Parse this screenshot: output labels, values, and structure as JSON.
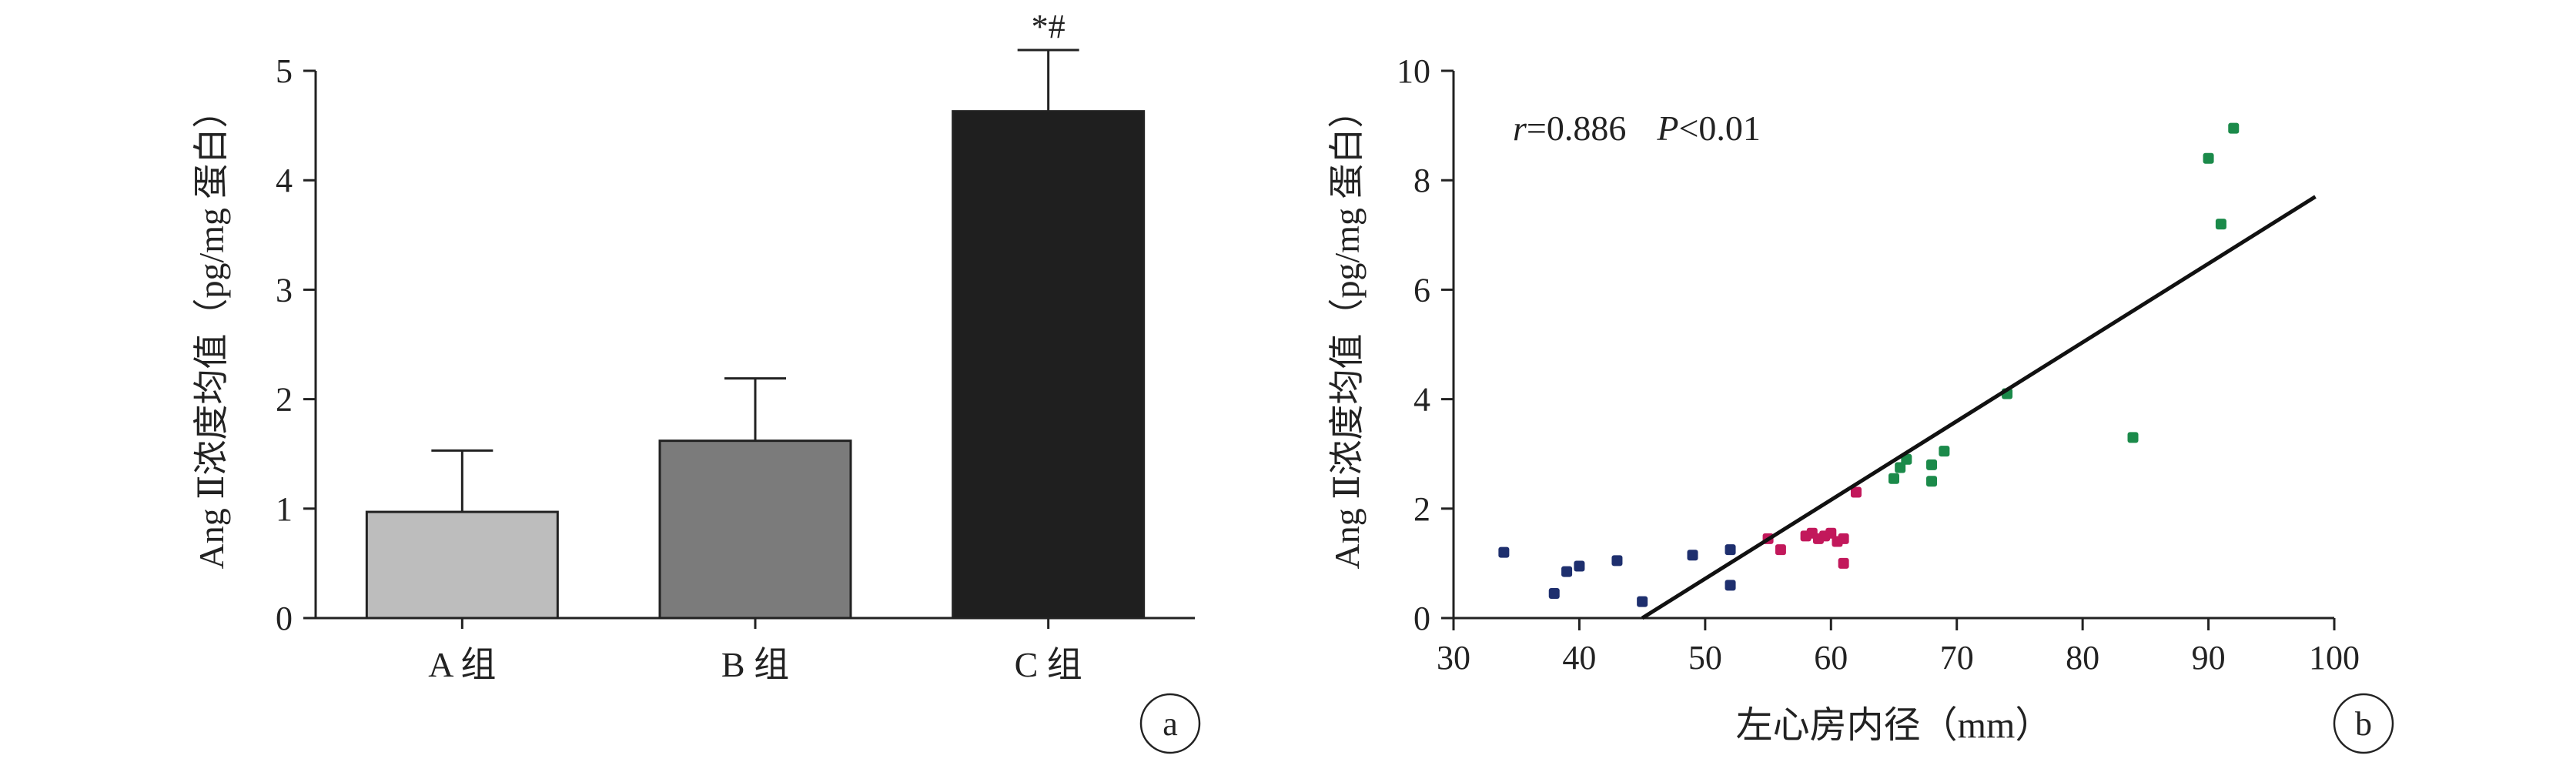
{
  "chart_data": [
    {
      "type": "bar",
      "panel_label": "a",
      "ylabel": "Ang Ⅱ浓度均值（pg/mg 蛋白）",
      "ylim": [
        0,
        5
      ],
      "yticks": [
        "0",
        "1",
        "2",
        "3",
        "4",
        "5"
      ],
      "categories": [
        "A 组",
        "B 组",
        "C 组"
      ],
      "values": [
        0.97,
        1.62,
        4.63
      ],
      "errors": [
        0.56,
        0.57,
        0.56
      ],
      "annotations": [
        "",
        "",
        "*#"
      ],
      "colors": [
        "#bdbdbd",
        "#7b7b7b",
        "#1f1f1f"
      ]
    },
    {
      "type": "scatter",
      "panel_label": "b",
      "xlabel": "左心房内径（mm）",
      "ylabel": "Ang Ⅱ浓度均值（pg/mg 蛋白）",
      "xlim": [
        30,
        100
      ],
      "ylim": [
        0,
        10
      ],
      "xticks": [
        "30",
        "40",
        "50",
        "60",
        "70",
        "80",
        "90",
        "100"
      ],
      "yticks": [
        "0",
        "2",
        "4",
        "6",
        "8",
        "10"
      ],
      "stat_r": "r",
      "stat_r_value": "=0.886",
      "stat_p": "P",
      "stat_p_value": "<0.01",
      "fit_line": {
        "x": [
          45,
          98.5
        ],
        "y": [
          0,
          7.7
        ]
      },
      "groups": [
        {
          "color": "#1e2f6e",
          "points": [
            [
              34,
              1.2
            ],
            [
              38,
              0.45
            ],
            [
              39,
              0.85
            ],
            [
              40,
              0.95
            ],
            [
              43,
              1.05
            ],
            [
              45,
              0.3
            ],
            [
              49,
              1.15
            ],
            [
              52,
              1.25
            ],
            [
              52,
              0.6
            ]
          ]
        },
        {
          "color": "#c2185b",
          "points": [
            [
              55,
              1.45
            ],
            [
              56,
              1.25
            ],
            [
              58,
              1.5
            ],
            [
              58.5,
              1.55
            ],
            [
              59,
              1.45
            ],
            [
              59.5,
              1.5
            ],
            [
              60,
              1.55
            ],
            [
              60.5,
              1.4
            ],
            [
              61,
              1.45
            ],
            [
              61,
              1.0
            ],
            [
              62,
              2.3
            ]
          ]
        },
        {
          "color": "#1b8a4a",
          "points": [
            [
              65,
              2.55
            ],
            [
              65.5,
              2.75
            ],
            [
              66,
              2.9
            ],
            [
              68,
              2.5
            ],
            [
              68,
              2.8
            ],
            [
              69,
              3.05
            ],
            [
              74,
              4.1
            ],
            [
              84,
              3.3
            ],
            [
              90,
              8.4
            ],
            [
              91,
              7.2
            ],
            [
              92,
              8.95
            ]
          ]
        }
      ]
    }
  ]
}
